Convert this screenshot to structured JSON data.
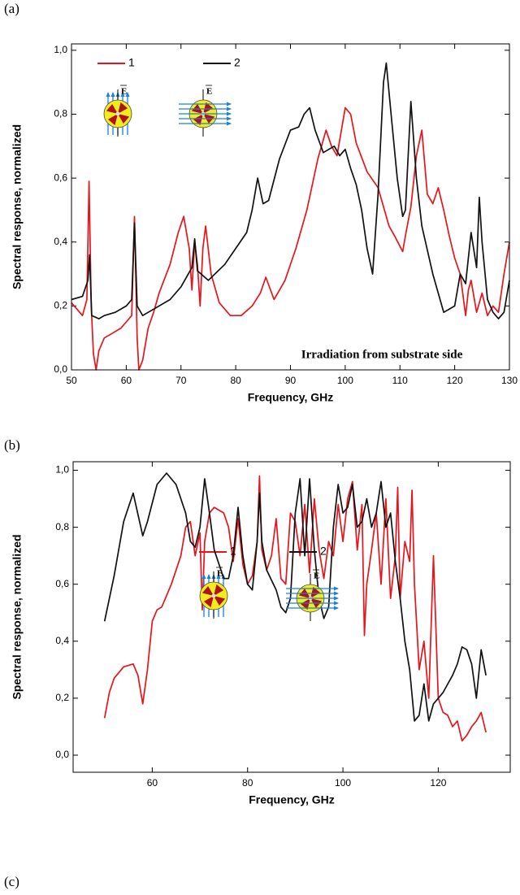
{
  "figure_labels": [
    "(a)",
    "(b)",
    "(c)"
  ],
  "chart_data": [
    {
      "type": "line",
      "x_label": "Frequency, GHz",
      "y_label": "Spectral response, normalized",
      "annotation": "Irradiation from substrate side",
      "field_label": "E",
      "xlim": [
        50,
        130
      ],
      "xticks": [
        50,
        60,
        70,
        80,
        90,
        100,
        110,
        120,
        130
      ],
      "ylim": [
        0,
        1.02
      ],
      "yticks": [
        {
          "value": 0,
          "label": "0,0"
        },
        {
          "value": 0.2,
          "label": "0,2"
        },
        {
          "value": 0.4,
          "label": "0,4"
        },
        {
          "value": 0.6,
          "label": "0,6"
        },
        {
          "value": 0.8,
          "label": "0,8"
        },
        {
          "value": 1.0,
          "label": "1,0"
        }
      ],
      "series": [
        {
          "name": "1",
          "color": "#e8141c",
          "x": [
            50,
            51,
            52,
            52.8,
            53.2,
            53.6,
            54,
            54.5,
            55,
            56,
            57,
            58,
            59,
            60,
            61,
            61.5,
            62,
            62.3,
            63,
            64,
            65,
            66,
            68,
            69.5,
            70.5,
            71.5,
            72,
            72.5,
            73,
            73.5,
            74,
            74.5,
            75.5,
            77,
            79,
            81,
            83,
            84.5,
            85.5,
            87,
            89,
            91,
            93,
            95,
            96.5,
            97.5,
            98.5,
            100,
            101,
            102,
            104,
            106,
            108,
            109,
            110.5,
            111,
            112,
            113,
            114,
            115,
            116,
            117,
            118,
            119,
            120,
            121,
            122,
            122.5,
            123,
            124,
            125,
            126,
            127,
            128,
            129,
            130
          ],
          "values": [
            0.21,
            0.19,
            0.17,
            0.22,
            0.59,
            0.2,
            0.05,
            0.0,
            0.06,
            0.1,
            0.11,
            0.12,
            0.13,
            0.15,
            0.17,
            0.48,
            0.1,
            0.0,
            0.03,
            0.13,
            0.18,
            0.24,
            0.33,
            0.43,
            0.48,
            0.38,
            0.25,
            0.4,
            0.33,
            0.2,
            0.38,
            0.45,
            0.3,
            0.21,
            0.17,
            0.17,
            0.2,
            0.24,
            0.29,
            0.22,
            0.28,
            0.38,
            0.5,
            0.66,
            0.75,
            0.7,
            0.67,
            0.82,
            0.8,
            0.71,
            0.62,
            0.57,
            0.45,
            0.42,
            0.37,
            0.42,
            0.51,
            0.67,
            0.75,
            0.55,
            0.52,
            0.57,
            0.5,
            0.42,
            0.35,
            0.3,
            0.17,
            0.25,
            0.28,
            0.18,
            0.24,
            0.17,
            0.2,
            0.18,
            0.3,
            0.4
          ]
        },
        {
          "name": "2",
          "color": "#111111",
          "x": [
            50,
            52,
            53,
            53.3,
            53.7,
            55,
            56,
            58,
            60,
            61,
            61.5,
            62,
            63,
            65,
            68,
            70,
            72,
            72.5,
            73,
            75,
            78,
            80,
            82,
            83,
            84,
            85,
            86,
            88,
            90,
            91.5,
            92.5,
            93.5,
            94.5,
            96,
            98,
            99,
            100,
            101,
            102,
            103,
            104,
            105,
            106,
            107,
            107.5,
            108.5,
            109.5,
            110.5,
            111,
            112,
            113,
            114,
            116,
            118,
            120,
            121,
            122,
            123,
            124,
            124.5,
            125,
            126,
            127,
            128,
            129,
            130
          ],
          "values": [
            0.22,
            0.23,
            0.28,
            0.36,
            0.17,
            0.16,
            0.17,
            0.18,
            0.2,
            0.22,
            0.46,
            0.2,
            0.17,
            0.19,
            0.22,
            0.26,
            0.32,
            0.41,
            0.31,
            0.28,
            0.33,
            0.38,
            0.43,
            0.5,
            0.6,
            0.52,
            0.53,
            0.66,
            0.75,
            0.76,
            0.8,
            0.82,
            0.75,
            0.68,
            0.7,
            0.67,
            0.69,
            0.63,
            0.58,
            0.5,
            0.38,
            0.3,
            0.55,
            0.9,
            0.96,
            0.78,
            0.6,
            0.48,
            0.5,
            0.84,
            0.6,
            0.45,
            0.3,
            0.18,
            0.2,
            0.3,
            0.27,
            0.43,
            0.32,
            0.54,
            0.4,
            0.22,
            0.18,
            0.16,
            0.18,
            0.28
          ]
        }
      ]
    },
    {
      "type": "line",
      "x_label": "Frequency, GHz",
      "y_label": "Spectral response, normalized",
      "field_label": "E",
      "xlim": [
        43.4,
        135.1
      ],
      "xticks": [
        60,
        80,
        100,
        120
      ],
      "ylim": [
        -0.06,
        1.03
      ],
      "yticks": [
        {
          "value": 0,
          "label": "0,0"
        },
        {
          "value": 0.2,
          "label": "0,2"
        },
        {
          "value": 0.4,
          "label": "0,4"
        },
        {
          "value": 0.6,
          "label": "0,6"
        },
        {
          "value": 0.8,
          "label": "0,8"
        },
        {
          "value": 1.0,
          "label": "1,0"
        }
      ],
      "series": [
        {
          "name": "1",
          "color": "#e8141c",
          "x": [
            50,
            51,
            52,
            54,
            56,
            57,
            58,
            59,
            60,
            61,
            62,
            64,
            66,
            67,
            68,
            69,
            70,
            70.5,
            71,
            72,
            73,
            75,
            76,
            77,
            78,
            79,
            80,
            81,
            82,
            82.5,
            83,
            84,
            85,
            86,
            87,
            88,
            89,
            90,
            91,
            92,
            93,
            94,
            95,
            96,
            97,
            98,
            99,
            100,
            101,
            102,
            103,
            104,
            104.5,
            105,
            106,
            107,
            108,
            109,
            110,
            111,
            111.5,
            112,
            113,
            114,
            114.5,
            115,
            116,
            117,
            118,
            119,
            120,
            121,
            122,
            123,
            124,
            125,
            126,
            127,
            128,
            129,
            130
          ],
          "values": [
            0.13,
            0.22,
            0.27,
            0.31,
            0.32,
            0.28,
            0.18,
            0.3,
            0.47,
            0.51,
            0.52,
            0.6,
            0.7,
            0.8,
            0.82,
            0.7,
            0.78,
            0.51,
            0.75,
            0.85,
            0.87,
            0.85,
            0.8,
            0.68,
            0.83,
            0.67,
            0.6,
            0.63,
            0.75,
            0.98,
            0.72,
            0.65,
            0.7,
            0.83,
            0.62,
            0.6,
            0.85,
            0.82,
            0.7,
            0.88,
            0.64,
            0.9,
            0.72,
            0.62,
            0.75,
            0.7,
            0.88,
            0.75,
            0.9,
            0.96,
            0.72,
            0.88,
            0.42,
            0.6,
            0.72,
            0.85,
            0.6,
            0.9,
            0.55,
            0.7,
            0.94,
            0.55,
            0.75,
            0.68,
            0.93,
            0.6,
            0.3,
            0.4,
            0.2,
            0.7,
            0.2,
            0.15,
            0.14,
            0.1,
            0.12,
            0.05,
            0.07,
            0.1,
            0.12,
            0.15,
            0.08
          ]
        },
        {
          "name": "2",
          "color": "#111111",
          "x": [
            50,
            52,
            54,
            56,
            58,
            59,
            61,
            63,
            65,
            67,
            68,
            69,
            70,
            71,
            72,
            73,
            75,
            76,
            77,
            78,
            79,
            80,
            81,
            82,
            82.5,
            83,
            84,
            86,
            87,
            88,
            89,
            90,
            91,
            92,
            93,
            94,
            95,
            96,
            97,
            98,
            99,
            100,
            101,
            102,
            103,
            104,
            105,
            106,
            107,
            108,
            109,
            110,
            111,
            112,
            113,
            114,
            115,
            116,
            117,
            118,
            119,
            120,
            121,
            122,
            123,
            124,
            125,
            126,
            127,
            128,
            129,
            130
          ],
          "values": [
            0.47,
            0.63,
            0.82,
            0.92,
            0.77,
            0.82,
            0.95,
            0.99,
            0.95,
            0.85,
            0.75,
            0.73,
            0.8,
            0.97,
            0.85,
            0.72,
            0.62,
            0.62,
            0.7,
            0.87,
            0.7,
            0.6,
            0.58,
            0.75,
            0.92,
            0.75,
            0.65,
            0.58,
            0.52,
            0.5,
            0.55,
            0.85,
            0.97,
            0.7,
            0.97,
            0.72,
            0.55,
            0.48,
            0.52,
            0.8,
            0.95,
            0.85,
            0.87,
            0.95,
            0.8,
            0.82,
            0.9,
            0.8,
            0.85,
            0.96,
            0.8,
            0.85,
            0.68,
            0.55,
            0.4,
            0.3,
            0.12,
            0.14,
            0.25,
            0.12,
            0.18,
            0.2,
            0.22,
            0.25,
            0.28,
            0.32,
            0.38,
            0.37,
            0.32,
            0.2,
            0.37,
            0.28
          ]
        }
      ]
    }
  ]
}
